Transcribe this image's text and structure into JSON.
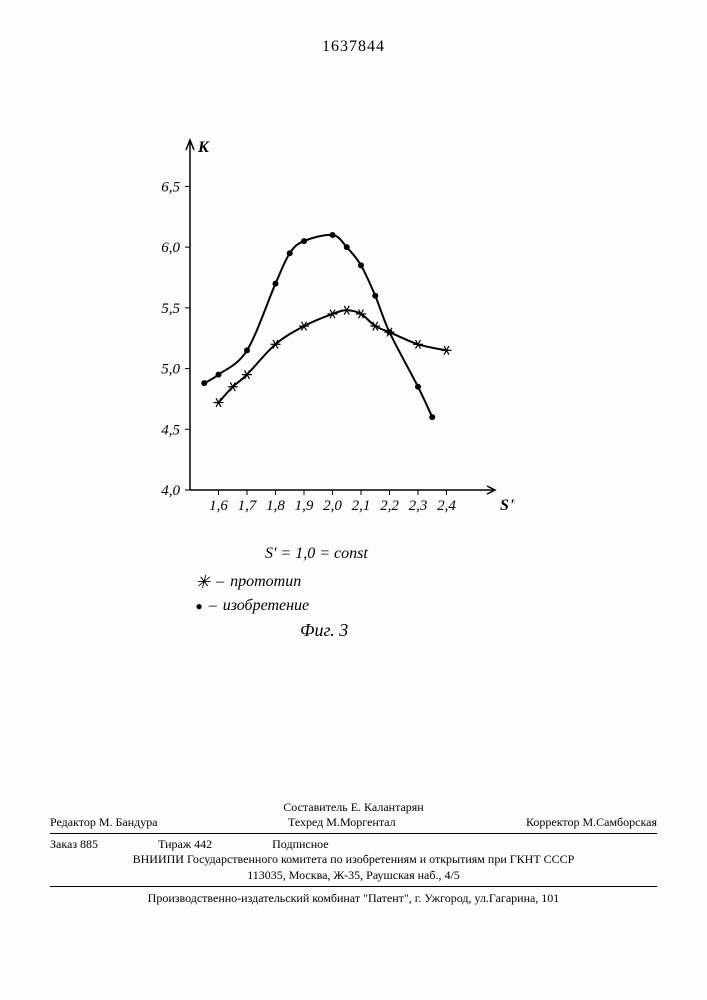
{
  "patent_number": "1637844",
  "chart": {
    "type": "line",
    "y_axis": {
      "label": "К",
      "ticks": [
        4.0,
        4.5,
        5.0,
        5.5,
        6.0,
        6.5
      ],
      "tick_labels": [
        "4,0",
        "4,5",
        "5,0",
        "5,5",
        "6,0",
        "6,5"
      ],
      "ylim": [
        4.0,
        6.8
      ]
    },
    "x_axis": {
      "label": "S\"",
      "ticks": [
        1.6,
        1.7,
        1.8,
        1.9,
        2.0,
        2.1,
        2.2,
        2.3,
        2.4
      ],
      "tick_labels": [
        "1,6",
        "1,7",
        "1,8",
        "1,9",
        "2,0",
        "2,1",
        "2,2",
        "2,3",
        "2,4"
      ],
      "xlim": [
        1.5,
        2.5
      ]
    },
    "subtitle": "S' = 1,0 = const",
    "series": [
      {
        "name": "изобретение",
        "marker": "dot",
        "color": "#000000",
        "points": [
          [
            1.55,
            4.88
          ],
          [
            1.6,
            4.95
          ],
          [
            1.7,
            5.15
          ],
          [
            1.8,
            5.7
          ],
          [
            1.85,
            5.95
          ],
          [
            1.9,
            6.05
          ],
          [
            2.0,
            6.1
          ],
          [
            2.05,
            6.0
          ],
          [
            2.1,
            5.85
          ],
          [
            2.15,
            5.6
          ],
          [
            2.2,
            5.3
          ],
          [
            2.3,
            4.85
          ],
          [
            2.35,
            4.6
          ]
        ]
      },
      {
        "name": "прототип",
        "marker": "asterisk",
        "color": "#000000",
        "points": [
          [
            1.6,
            4.72
          ],
          [
            1.65,
            4.85
          ],
          [
            1.7,
            4.95
          ],
          [
            1.8,
            5.2
          ],
          [
            1.9,
            5.35
          ],
          [
            2.0,
            5.45
          ],
          [
            2.05,
            5.48
          ],
          [
            2.1,
            5.45
          ],
          [
            2.15,
            5.35
          ],
          [
            2.2,
            5.3
          ],
          [
            2.3,
            5.2
          ],
          [
            2.4,
            5.15
          ]
        ]
      }
    ],
    "line_width": 2,
    "background_color": "#fdfdfc",
    "axis_color": "#000000",
    "figure_label": "Фиг. 3"
  },
  "legend": {
    "asterisk_label": "прототип",
    "dot_label": "изобретение"
  },
  "footer": {
    "compositor": "Составитель Е. Калантарян",
    "editor": "Редактор  М. Бандура",
    "tech_editor": "Техред М.Моргентал",
    "corrector": "Корректор  М.Самборская",
    "order": "Заказ 885",
    "print_run": "Тираж 442",
    "subscription": "Подписное",
    "org": "ВНИИПИ Государственного комитета по изобретениям и открытиям при ГКНТ СССР",
    "address": "113035, Москва, Ж-35, Раушская наб., 4/5",
    "publisher": "Производственно-издательский комбинат \"Патент\", г. Ужгород, ул.Гагарина, 101"
  }
}
